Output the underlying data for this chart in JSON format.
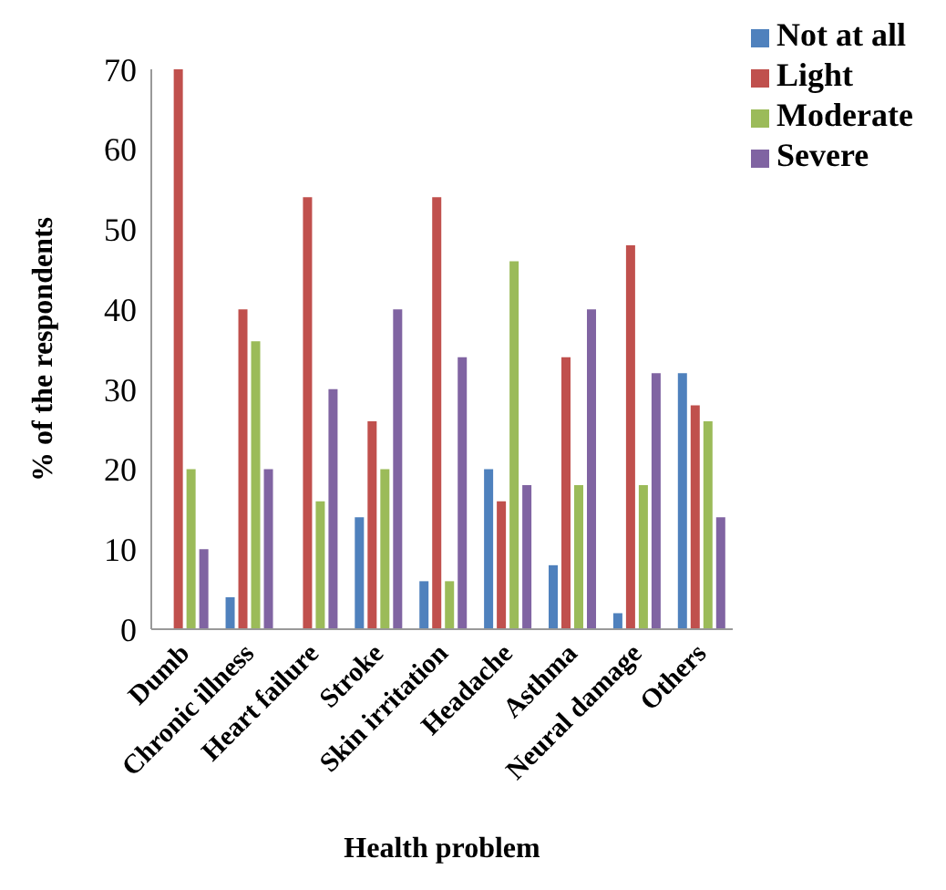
{
  "chart_data": {
    "type": "bar",
    "xlabel": "Health problem",
    "ylabel": "% of the respondents",
    "categories": [
      "Dumb",
      "Chronic illness",
      "Heart failure",
      "Stroke",
      "Skin irritation",
      "Headache",
      "Asthma",
      "Neural damage",
      "Others"
    ],
    "series": [
      {
        "name": "Not at all",
        "color": "#4f81bd",
        "values": [
          0,
          4,
          0,
          14,
          6,
          20,
          8,
          2,
          32
        ]
      },
      {
        "name": "Light",
        "color": "#c0504d",
        "values": [
          70,
          40,
          54,
          26,
          54,
          16,
          34,
          48,
          28
        ]
      },
      {
        "name": "Moderate",
        "color": "#9bbb59",
        "values": [
          20,
          36,
          16,
          20,
          6,
          46,
          18,
          18,
          26
        ]
      },
      {
        "name": "Severe",
        "color": "#8064a2",
        "values": [
          10,
          20,
          30,
          40,
          34,
          18,
          40,
          32,
          14
        ]
      }
    ],
    "ylim": [
      0,
      70
    ],
    "yticks": [
      0,
      10,
      20,
      30,
      40,
      50,
      60,
      70
    ],
    "grid": false,
    "legend": "top right"
  }
}
